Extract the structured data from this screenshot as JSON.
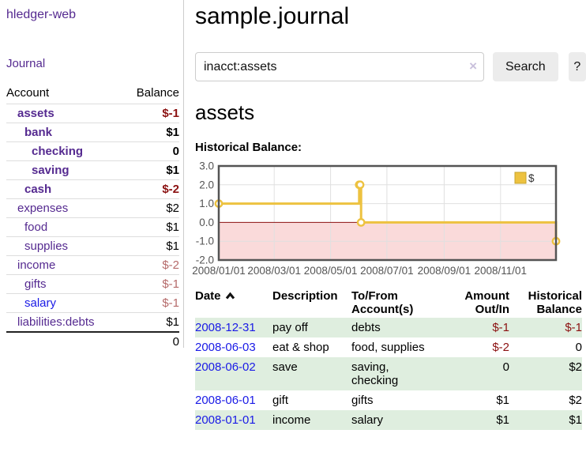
{
  "app": {
    "brand": "hledger-web"
  },
  "sidebar": {
    "journal_link": "Journal",
    "accounts": {
      "headers": {
        "account": "Account",
        "balance": "Balance"
      },
      "rows": [
        {
          "name": "assets",
          "depth": 0,
          "bold": true,
          "balance": "$-1",
          "balance_style": "neg-strong"
        },
        {
          "name": "bank",
          "depth": 1,
          "bold": true,
          "balance": "$1",
          "balance_style": "normal"
        },
        {
          "name": "checking",
          "depth": 2,
          "bold": true,
          "balance": "0",
          "balance_style": "normal"
        },
        {
          "name": "saving",
          "depth": 2,
          "bold": true,
          "balance": "$1",
          "balance_style": "normal"
        },
        {
          "name": "cash",
          "depth": 1,
          "bold": true,
          "balance": "$-2",
          "balance_style": "neg-strong"
        },
        {
          "name": "expenses",
          "depth": 0,
          "bold": false,
          "balance": "$2",
          "balance_style": "normal"
        },
        {
          "name": "food",
          "depth": 1,
          "bold": false,
          "balance": "$1",
          "balance_style": "normal"
        },
        {
          "name": "supplies",
          "depth": 1,
          "bold": false,
          "balance": "$1",
          "balance_style": "normal"
        },
        {
          "name": "income",
          "depth": 0,
          "bold": false,
          "balance": "$-2",
          "balance_style": "neg-weak"
        },
        {
          "name": "gifts",
          "depth": 1,
          "bold": false,
          "balance": "$-1",
          "balance_style": "neg-weak"
        },
        {
          "name": "salary",
          "depth": 1,
          "bold": false,
          "balance": "$-1",
          "balance_style": "neg-weak",
          "link_color": "blue"
        },
        {
          "name": "liabilities:debts",
          "depth": 0,
          "bold": false,
          "balance": "$1",
          "balance_style": "normal"
        }
      ],
      "total": "0"
    }
  },
  "header": {
    "title": "sample.journal"
  },
  "search": {
    "value": "inacct:assets",
    "clear_icon": "×",
    "button_label": "Search",
    "help_label": "?"
  },
  "account_page": {
    "title": "assets",
    "chart_title": "Historical Balance:"
  },
  "chart_data": {
    "type": "line",
    "title": "Historical Balance:",
    "series": [
      {
        "name": "$",
        "color": "#edc240",
        "step": true,
        "points": [
          [
            "2008-01-01",
            1
          ],
          [
            "2008-06-01",
            2
          ],
          [
            "2008-06-02",
            2
          ],
          [
            "2008-06-03",
            0
          ],
          [
            "2008-12-31",
            -1
          ]
        ]
      }
    ],
    "x_range": [
      "2008-01-01",
      "2008-12-31"
    ],
    "x_ticks": [
      "2008/01/01",
      "2008/03/01",
      "2008/05/01",
      "2008/07/01",
      "2008/09/01",
      "2008/11/01"
    ],
    "y_ticks": [
      3.0,
      2.0,
      1.0,
      0.0,
      -1.0,
      -2.0
    ],
    "ylim": [
      -2,
      3
    ],
    "grid": true,
    "legend": {
      "position": "top-right",
      "label": "$"
    },
    "negative_region_fill": "#fadada",
    "zero_line_color": "#8b1111",
    "plot_border_color": "#545454"
  },
  "register_table": {
    "headers": {
      "date": "Date",
      "sort_icon": "chevron-up",
      "description": "Description",
      "tofrom_line1": "To/From",
      "tofrom_line2": "Account(s)",
      "amount_line1": "Amount",
      "amount_line2": "Out/In",
      "balance_line1": "Historical",
      "balance_line2": "Balance"
    },
    "rows": [
      {
        "date": "2008-12-31",
        "description": "pay off",
        "accounts": "debts",
        "amount": "$-1",
        "amount_negative": true,
        "balance": "$-1",
        "balance_negative": true
      },
      {
        "date": "2008-06-03",
        "description": "eat & shop",
        "accounts": "food, supplies",
        "amount": "$-2",
        "amount_negative": true,
        "balance": "0",
        "balance_negative": false
      },
      {
        "date": "2008-06-02",
        "description": "save",
        "accounts": "saving, checking",
        "amount": "0",
        "amount_negative": false,
        "balance": "$2",
        "balance_negative": false
      },
      {
        "date": "2008-06-01",
        "description": "gift",
        "accounts": "gifts",
        "amount": "$1",
        "amount_negative": false,
        "balance": "$2",
        "balance_negative": false
      },
      {
        "date": "2008-01-01",
        "description": "income",
        "accounts": "salary",
        "amount": "$1",
        "amount_negative": false,
        "balance": "$1",
        "balance_negative": false
      }
    ]
  }
}
